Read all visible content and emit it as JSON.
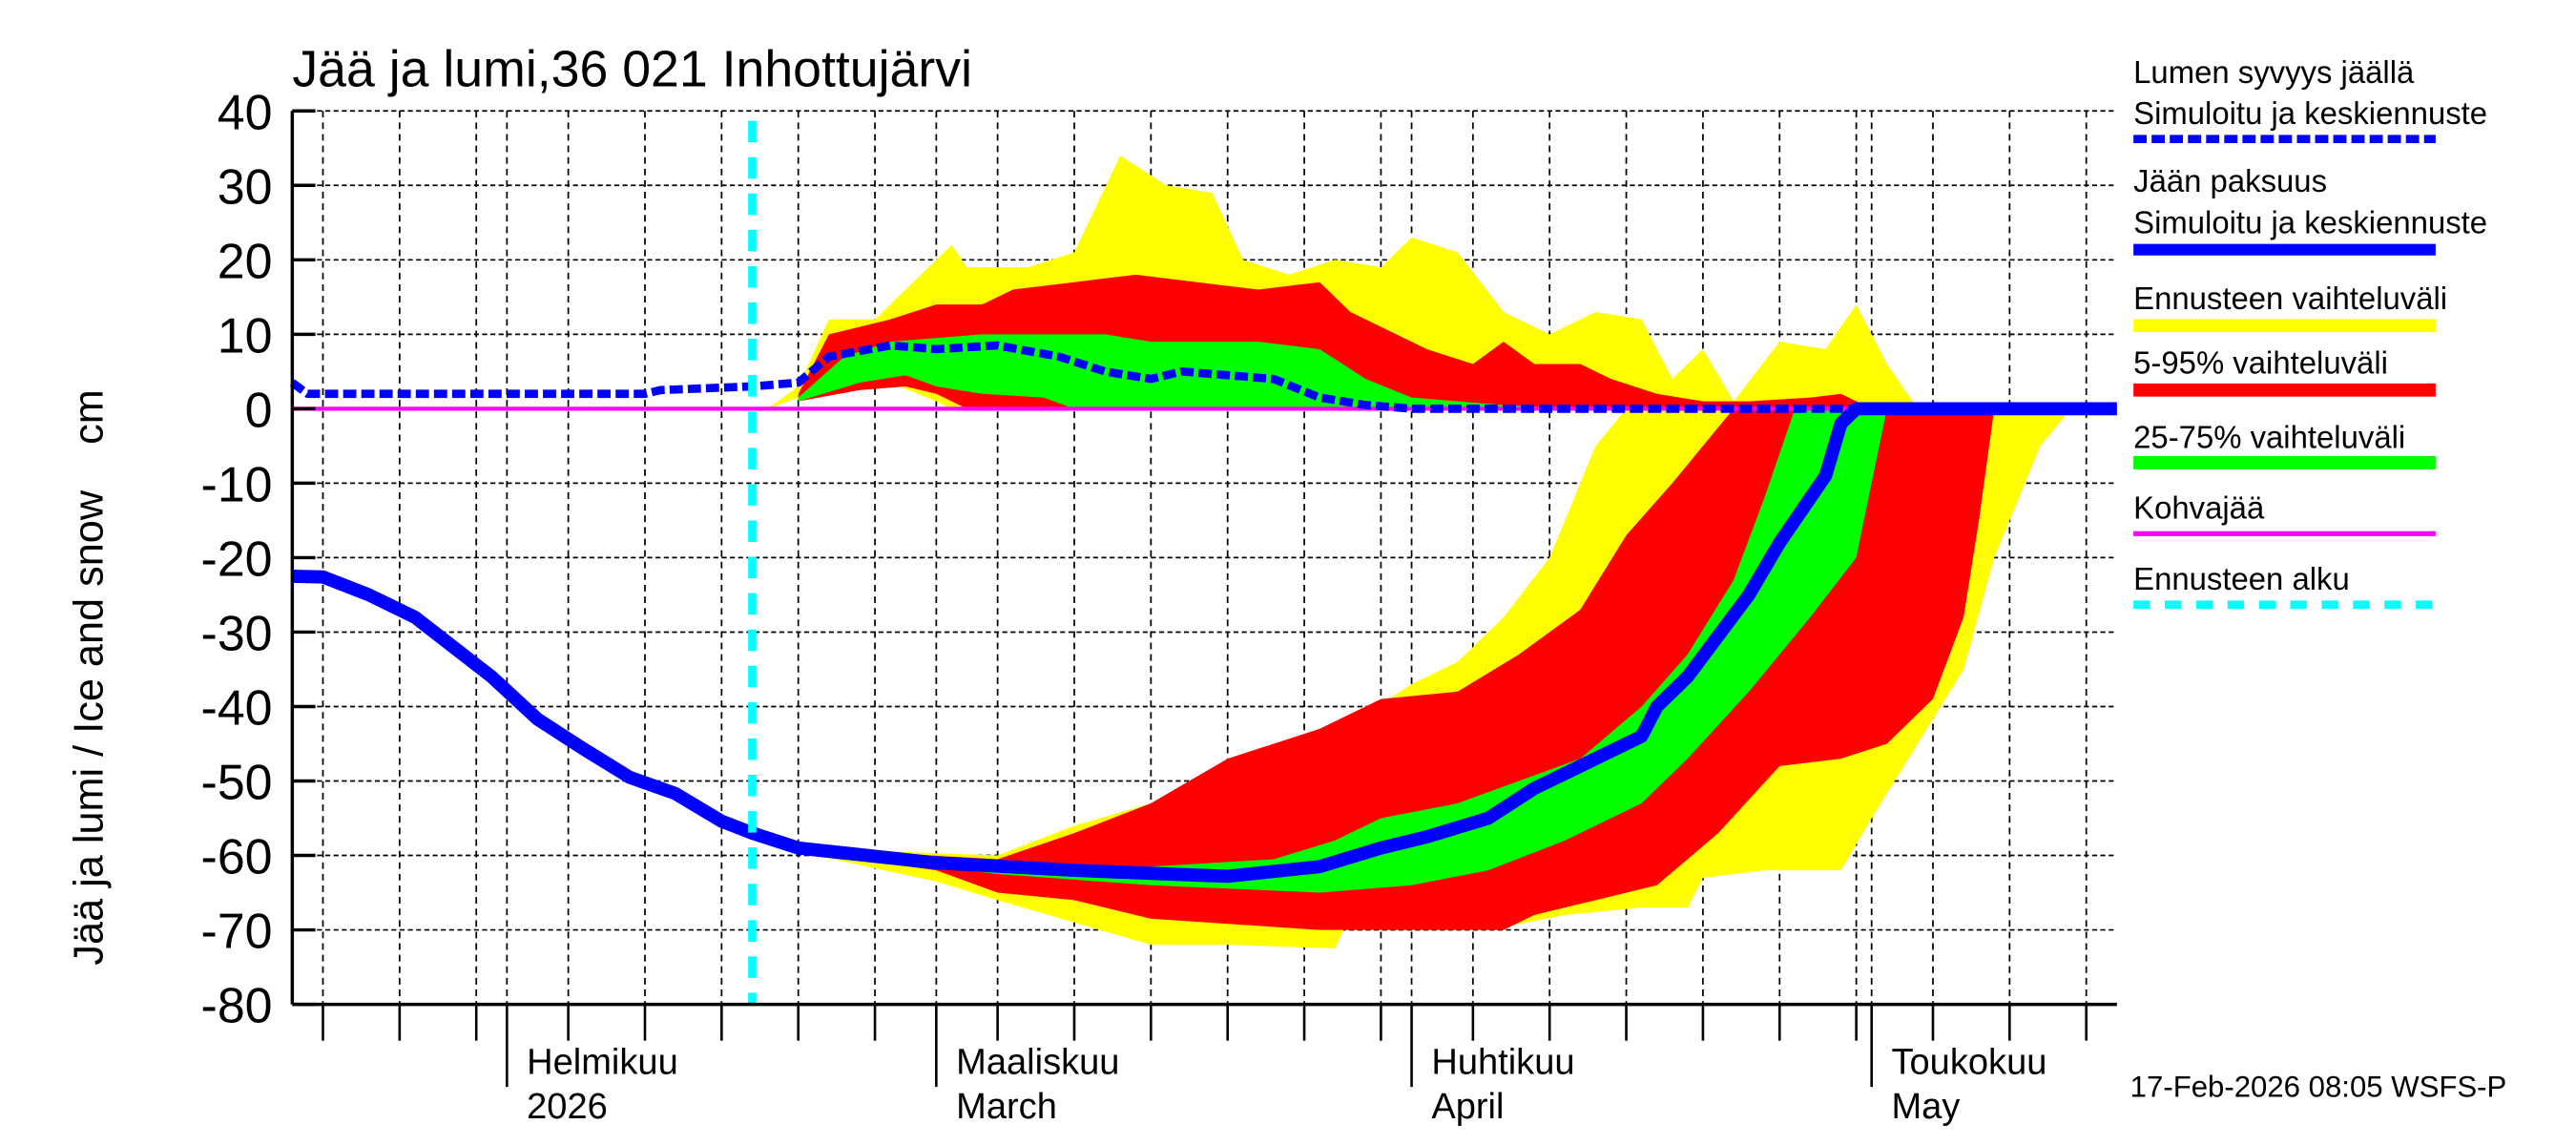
{
  "chart_data": {
    "type": "area",
    "title": "Jää ja lumi,36 021 Inhottujärvi",
    "ylabel": "Jää ja lumi / Ice and snow    cm",
    "xlabel": "",
    "xlim": [
      "2026-01-18",
      "2026-05-17"
    ],
    "ylim": [
      -80,
      40
    ],
    "yticks": [
      "40",
      "30",
      "20",
      "10",
      "0",
      "-10",
      "-20",
      "-30",
      "-40",
      "-50",
      "-60",
      "-70",
      "-80"
    ],
    "ytick_values": [
      40,
      30,
      20,
      10,
      0,
      -10,
      -20,
      -30,
      -40,
      -50,
      -60,
      -70,
      -80
    ],
    "grid": true,
    "legend_position": "right",
    "month_labels": [
      {
        "date": "2026-02-01",
        "line1": "Helmikuu",
        "line2": "2026"
      },
      {
        "date": "2026-03-01",
        "line1": "Maaliskuu",
        "line2": "March"
      },
      {
        "date": "2026-04-01",
        "line1": "Huhtikuu",
        "line2": "April"
      },
      {
        "date": "2026-05-01",
        "line1": "Toukokuu",
        "line2": "May"
      }
    ],
    "forecast_start": "2026-02-17",
    "colors": {
      "snow": "#0000ff",
      "ice": "#0000ff",
      "range": "#ffff00",
      "p5_95": "#ff0000",
      "p25_75": "#00ff00",
      "slush": "#ff00ff",
      "forecast_start": "#00ffff"
    },
    "legend": [
      {
        "line1": "Lumen syvyys jäällä",
        "line2": "Simuloitu ja keskiennuste",
        "key": "snow",
        "style": "dashed"
      },
      {
        "line1": "Jään paksuus",
        "line2": "Simuloitu ja keskiennuste",
        "key": "ice",
        "style": "solid"
      },
      {
        "line1": "Ennusteen vaihteluväli",
        "key": "range",
        "style": "band"
      },
      {
        "line1": "5-95% vaihteluväli",
        "key": "p5_95",
        "style": "band"
      },
      {
        "line1": "25-75% vaihteluväli",
        "key": "p25_75",
        "style": "band"
      },
      {
        "line1": "Kohvajää",
        "key": "slush",
        "style": "thin"
      },
      {
        "line1": "Ennusteen alku",
        "key": "forecast_start",
        "style": "cyan-dashed"
      }
    ],
    "series": {
      "snow_mean": [
        [
          "2026-01-18",
          3.5
        ],
        [
          "2026-01-19",
          2
        ],
        [
          "2026-02-10",
          2
        ],
        [
          "2026-02-11",
          2.5
        ],
        [
          "2026-02-17",
          3
        ],
        [
          "2026-02-20",
          3.5
        ],
        [
          "2026-02-22",
          7
        ],
        [
          "2026-02-26",
          8.5
        ],
        [
          "2026-03-01",
          8
        ],
        [
          "2026-03-05",
          8.5
        ],
        [
          "2026-03-09",
          7
        ],
        [
          "2026-03-12",
          5
        ],
        [
          "2026-03-15",
          4
        ],
        [
          "2026-03-17",
          5
        ],
        [
          "2026-03-20",
          4.5
        ],
        [
          "2026-03-23",
          4
        ],
        [
          "2026-03-26",
          1.5
        ],
        [
          "2026-03-29",
          0.5
        ],
        [
          "2026-04-01",
          0
        ],
        [
          "2026-04-30",
          0
        ]
      ],
      "ice_mean": [
        [
          "2026-01-18",
          -22.5
        ],
        [
          "2026-01-20",
          -22.6
        ],
        [
          "2026-01-23",
          -25
        ],
        [
          "2026-01-26",
          -28
        ],
        [
          "2026-01-31",
          -36
        ],
        [
          "2026-02-03",
          -41.7
        ],
        [
          "2026-02-06",
          -45.7
        ],
        [
          "2026-02-09",
          -49.5
        ],
        [
          "2026-02-12",
          -51.7
        ],
        [
          "2026-02-15",
          -55.4
        ],
        [
          "2026-02-17",
          -57
        ],
        [
          "2026-02-20",
          -59
        ],
        [
          "2026-03-01",
          -61
        ],
        [
          "2026-03-10",
          -62
        ],
        [
          "2026-03-20",
          -62.8
        ],
        [
          "2026-03-26",
          -61.5
        ],
        [
          "2026-03-30",
          -59
        ],
        [
          "2026-04-02",
          -57.5
        ],
        [
          "2026-04-06",
          -55
        ],
        [
          "2026-04-09",
          -51
        ],
        [
          "2026-04-16",
          -44
        ],
        [
          "2026-04-17",
          -40
        ],
        [
          "2026-04-19",
          -36
        ],
        [
          "2026-04-23",
          -25
        ],
        [
          "2026-04-25",
          -18
        ],
        [
          "2026-04-28",
          -9
        ],
        [
          "2026-04-29",
          -2
        ],
        [
          "2026-04-30",
          0
        ],
        [
          "2026-05-17",
          0
        ]
      ],
      "snow_range": {
        "upper": [
          [
            "2026-02-18",
            0
          ],
          [
            "2026-02-20",
            3
          ],
          [
            "2026-02-22",
            12
          ],
          [
            "2026-02-25",
            12
          ],
          [
            "2026-02-28",
            18
          ],
          [
            "2026-03-02",
            22
          ],
          [
            "2026-03-03",
            19
          ],
          [
            "2026-03-07",
            19
          ],
          [
            "2026-03-10",
            21
          ],
          [
            "2026-03-13",
            34
          ],
          [
            "2026-03-16",
            30
          ],
          [
            "2026-03-19",
            29
          ],
          [
            "2026-03-21",
            20
          ],
          [
            "2026-03-24",
            18
          ],
          [
            "2026-03-27",
            20
          ],
          [
            "2026-03-30",
            19
          ],
          [
            "2026-04-01",
            23
          ],
          [
            "2026-04-04",
            21
          ],
          [
            "2026-04-07",
            13
          ],
          [
            "2026-04-10",
            10
          ],
          [
            "2026-04-13",
            13
          ],
          [
            "2026-04-16",
            12
          ],
          [
            "2026-04-18",
            4
          ],
          [
            "2026-04-20",
            8
          ],
          [
            "2026-04-22",
            1
          ],
          [
            "2026-04-25",
            9
          ],
          [
            "2026-04-28",
            8
          ],
          [
            "2026-04-30",
            14
          ],
          [
            "2026-05-02",
            6
          ],
          [
            "2026-05-04",
            0
          ]
        ],
        "lower": [
          [
            "2026-02-18",
            0
          ],
          [
            "2026-02-22",
            3
          ],
          [
            "2026-02-26",
            3.5
          ],
          [
            "2026-03-01",
            1
          ],
          [
            "2026-03-02",
            0
          ],
          [
            "2026-05-04",
            0
          ]
        ]
      },
      "snow_p5_95": {
        "upper": [
          [
            "2026-02-20",
            2
          ],
          [
            "2026-02-22",
            10
          ],
          [
            "2026-02-26",
            12
          ],
          [
            "2026-03-01",
            14
          ],
          [
            "2026-03-04",
            14
          ],
          [
            "2026-03-06",
            16
          ],
          [
            "2026-03-10",
            17
          ],
          [
            "2026-03-14",
            18
          ],
          [
            "2026-03-18",
            17
          ],
          [
            "2026-03-22",
            16
          ],
          [
            "2026-03-26",
            17
          ],
          [
            "2026-03-28",
            13
          ],
          [
            "2026-04-02",
            8
          ],
          [
            "2026-04-05",
            6
          ],
          [
            "2026-04-07",
            9
          ],
          [
            "2026-04-09",
            6
          ],
          [
            "2026-04-12",
            6
          ],
          [
            "2026-04-14",
            4
          ],
          [
            "2026-04-17",
            2
          ],
          [
            "2026-04-20",
            1
          ],
          [
            "2026-04-23",
            1
          ],
          [
            "2026-04-27",
            1.5
          ],
          [
            "2026-04-29",
            2
          ],
          [
            "2026-05-01",
            0
          ]
        ],
        "lower": [
          [
            "2026-02-20",
            1
          ],
          [
            "2026-02-24",
            2.5
          ],
          [
            "2026-02-27",
            3
          ],
          [
            "2026-03-01",
            2
          ],
          [
            "2026-03-03",
            0
          ],
          [
            "2026-05-01",
            0
          ]
        ]
      },
      "snow_p25_75": {
        "upper": [
          [
            "2026-02-20",
            1.5
          ],
          [
            "2026-02-23",
            7
          ],
          [
            "2026-02-26",
            9
          ],
          [
            "2026-03-01",
            9.5
          ],
          [
            "2026-03-04",
            10
          ],
          [
            "2026-03-08",
            10
          ],
          [
            "2026-03-12",
            10
          ],
          [
            "2026-03-15",
            9
          ],
          [
            "2026-03-18",
            9
          ],
          [
            "2026-03-22",
            9
          ],
          [
            "2026-03-26",
            8
          ],
          [
            "2026-03-29",
            4
          ],
          [
            "2026-04-01",
            1.5
          ],
          [
            "2026-04-04",
            1
          ],
          [
            "2026-04-07",
            0.5
          ],
          [
            "2026-04-12",
            0
          ]
        ],
        "lower": [
          [
            "2026-02-20",
            1
          ],
          [
            "2026-02-24",
            3.5
          ],
          [
            "2026-02-27",
            4.5
          ],
          [
            "2026-03-01",
            3
          ],
          [
            "2026-03-04",
            2
          ],
          [
            "2026-03-08",
            1.5
          ],
          [
            "2026-03-10",
            0
          ],
          [
            "2026-04-12",
            0
          ]
        ]
      },
      "ice_range": {
        "upper": [
          [
            "2026-02-20",
            -59
          ],
          [
            "2026-03-05",
            -60
          ],
          [
            "2026-03-10",
            -56
          ],
          [
            "2026-03-15",
            -53
          ],
          [
            "2026-03-20",
            -50
          ],
          [
            "2026-03-26",
            -45
          ],
          [
            "2026-04-01",
            -37
          ],
          [
            "2026-04-04",
            -34
          ],
          [
            "2026-04-07",
            -28
          ],
          [
            "2026-04-10",
            -20
          ],
          [
            "2026-04-13",
            -5
          ],
          [
            "2026-04-15",
            0
          ],
          [
            "2026-05-14",
            0
          ]
        ],
        "lower": [
          [
            "2026-02-20",
            -59.5
          ],
          [
            "2026-03-01",
            -63.5
          ],
          [
            "2026-03-05",
            -66
          ],
          [
            "2026-03-10",
            -69
          ],
          [
            "2026-03-15",
            -72
          ],
          [
            "2026-03-20",
            -72
          ],
          [
            "2026-03-27",
            -72.5
          ],
          [
            "2026-03-28",
            -68
          ],
          [
            "2026-04-06",
            -70
          ],
          [
            "2026-04-11",
            -68
          ],
          [
            "2026-04-16",
            -67
          ],
          [
            "2026-04-19",
            -67
          ],
          [
            "2026-04-20",
            -63
          ],
          [
            "2026-04-24",
            -62
          ],
          [
            "2026-04-29",
            -62
          ],
          [
            "2026-05-01",
            -55
          ],
          [
            "2026-05-04",
            -45
          ],
          [
            "2026-05-07",
            -35
          ],
          [
            "2026-05-09",
            -20
          ],
          [
            "2026-05-12",
            -5
          ],
          [
            "2026-05-14",
            0
          ]
        ]
      },
      "ice_p5_95": {
        "upper": [
          [
            "2026-02-20",
            -59
          ],
          [
            "2026-03-05",
            -60.5
          ],
          [
            "2026-03-10",
            -57
          ],
          [
            "2026-03-15",
            -53
          ],
          [
            "2026-03-20",
            -47
          ],
          [
            "2026-03-26",
            -43
          ],
          [
            "2026-03-30",
            -39
          ],
          [
            "2026-04-04",
            -38
          ],
          [
            "2026-04-08",
            -33
          ],
          [
            "2026-04-12",
            -27
          ],
          [
            "2026-04-15",
            -17
          ],
          [
            "2026-04-18",
            -10
          ],
          [
            "2026-04-20",
            -5
          ],
          [
            "2026-04-22",
            0
          ],
          [
            "2026-05-09",
            0
          ]
        ],
        "lower": [
          [
            "2026-02-20",
            -59.5
          ],
          [
            "2026-03-01",
            -62
          ],
          [
            "2026-03-05",
            -65
          ],
          [
            "2026-03-10",
            -66
          ],
          [
            "2026-03-15",
            -68.5
          ],
          [
            "2026-03-26",
            -70
          ],
          [
            "2026-04-01",
            -70
          ],
          [
            "2026-04-07",
            -70
          ],
          [
            "2026-04-09",
            -68
          ],
          [
            "2026-04-13",
            -66
          ],
          [
            "2026-04-17",
            -64
          ],
          [
            "2026-04-21",
            -57
          ],
          [
            "2026-04-25",
            -48
          ],
          [
            "2026-04-29",
            -47
          ],
          [
            "2026-05-02",
            -45
          ],
          [
            "2026-05-05",
            -39
          ],
          [
            "2026-05-07",
            -28
          ],
          [
            "2026-05-08",
            -15
          ],
          [
            "2026-05-09",
            0
          ]
        ]
      },
      "ice_p25_75": {
        "upper": [
          [
            "2026-02-20",
            -59
          ],
          [
            "2026-03-05",
            -61
          ],
          [
            "2026-03-15",
            -61.5
          ],
          [
            "2026-03-23",
            -60.5
          ],
          [
            "2026-03-27",
            -58
          ],
          [
            "2026-03-30",
            -55
          ],
          [
            "2026-04-04",
            -53
          ],
          [
            "2026-04-08",
            -50
          ],
          [
            "2026-04-12",
            -47
          ],
          [
            "2026-04-16",
            -40
          ],
          [
            "2026-04-19",
            -33
          ],
          [
            "2026-04-22",
            -23
          ],
          [
            "2026-04-24",
            -12
          ],
          [
            "2026-04-26",
            0
          ],
          [
            "2026-05-02",
            0
          ]
        ],
        "lower": [
          [
            "2026-02-20",
            -59.5
          ],
          [
            "2026-03-05",
            -62.5
          ],
          [
            "2026-03-15",
            -64
          ],
          [
            "2026-03-26",
            -65
          ],
          [
            "2026-04-01",
            -64
          ],
          [
            "2026-04-06",
            -62
          ],
          [
            "2026-04-11",
            -58
          ],
          [
            "2026-04-16",
            -53
          ],
          [
            "2026-04-19",
            -47
          ],
          [
            "2026-04-23",
            -38
          ],
          [
            "2026-04-27",
            -28
          ],
          [
            "2026-04-30",
            -20
          ],
          [
            "2026-05-01",
            -10
          ],
          [
            "2026-05-02",
            0
          ]
        ]
      }
    },
    "footer": "17-Feb-2026 08:05 WSFS-P"
  }
}
